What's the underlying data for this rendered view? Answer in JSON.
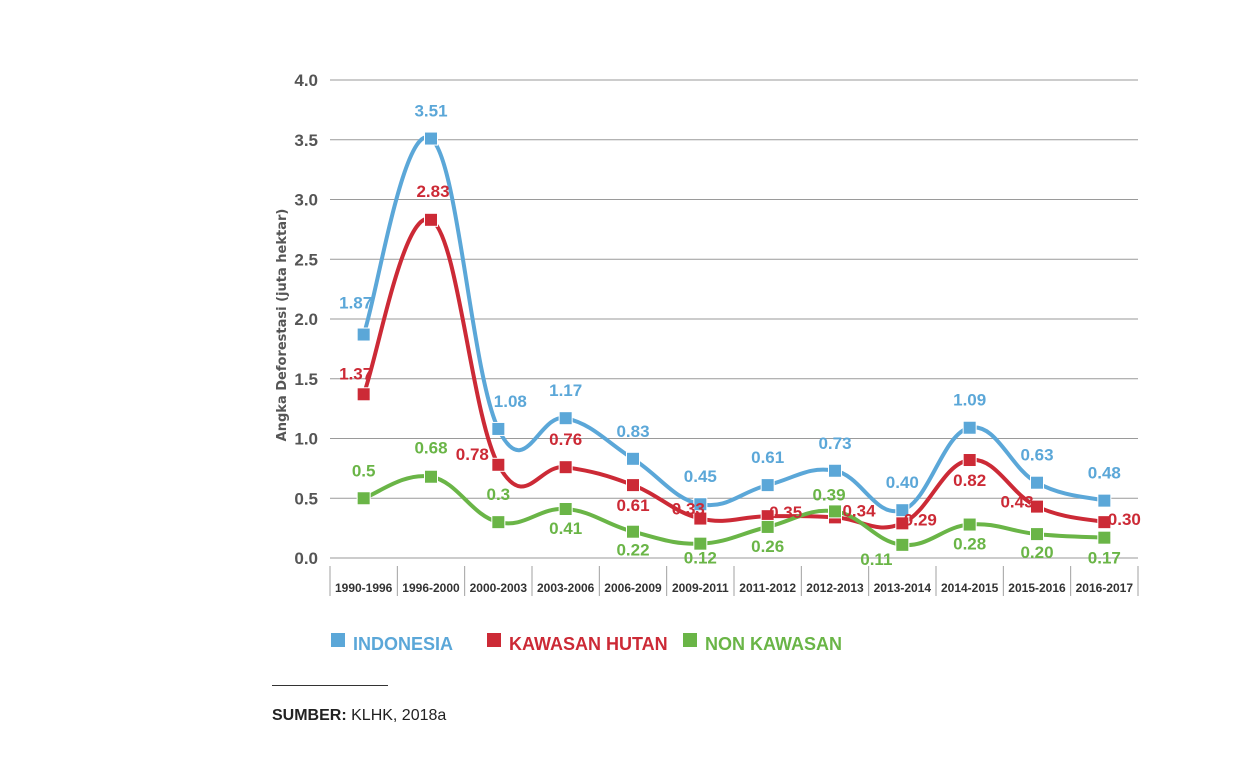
{
  "chart_data": {
    "type": "line",
    "title": "",
    "xlabel": "",
    "ylabel": "Angka Deforestasi (juta hektar)",
    "ylim": [
      0,
      4
    ],
    "yticks": [
      "0.0",
      "0.5",
      "1.0",
      "1.5",
      "2.0",
      "2.5",
      "3.0",
      "3.5",
      "4.0"
    ],
    "grid": true,
    "legend_position": "bottom-left",
    "categories": [
      "1990-1996",
      "1996-2000",
      "2000-2003",
      "2003-2006",
      "2006-2009",
      "2009-2011",
      "2011-2012",
      "2012-2013",
      "2013-2014",
      "2014-2015",
      "2015-2016",
      "2016-2017"
    ],
    "series": [
      {
        "name": "INDONESIA",
        "color": "#5ba7d8",
        "values": [
          1.87,
          3.51,
          1.08,
          1.17,
          0.83,
          0.45,
          0.61,
          0.73,
          0.4,
          1.09,
          0.63,
          0.48
        ],
        "labels": [
          "1.87",
          "3.51",
          "1.08",
          "1.17",
          "0.83",
          "0.45",
          "0.61",
          "0.73",
          "0.40",
          "1.09",
          "0.63",
          "0.48"
        ]
      },
      {
        "name": "KAWASAN HUTAN",
        "color": "#cc2a36",
        "values": [
          1.37,
          2.83,
          0.78,
          0.76,
          0.61,
          0.33,
          0.35,
          0.34,
          0.29,
          0.82,
          0.43,
          0.3
        ],
        "labels": [
          "1.37",
          "2.83",
          "0.78",
          "0.76",
          "0.61",
          "0.33",
          "0.35",
          "0.34",
          "0.29",
          "0.82",
          "0.43",
          "0.30"
        ]
      },
      {
        "name": "NON KAWASAN",
        "color": "#6ab547",
        "values": [
          0.5,
          0.68,
          0.3,
          0.41,
          0.22,
          0.12,
          0.26,
          0.39,
          0.11,
          0.28,
          0.2,
          0.17
        ],
        "labels": [
          "0.5",
          "0.68",
          "0.3",
          "0.41",
          "0.22",
          "0.12",
          "0.26",
          "0.39",
          "0.11",
          "0.28",
          "0.20",
          "0.17"
        ]
      }
    ]
  },
  "source": {
    "label": "SUMBER:",
    "text": " KLHK, 2018a"
  }
}
